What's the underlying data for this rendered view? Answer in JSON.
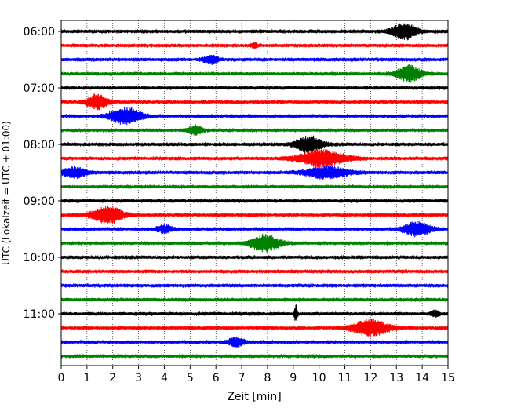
{
  "chart_data": {
    "type": "line",
    "title": "",
    "xlabel": "Zeit  [min]",
    "ylabel": "UTC (Lokalzeit = UTC + 01:00)",
    "xlim": [
      0,
      15
    ],
    "x_ticks": [
      0,
      1,
      2,
      3,
      4,
      5,
      6,
      7,
      8,
      9,
      10,
      11,
      12,
      13,
      14,
      15
    ],
    "y_tick_labels": [
      "06:00",
      "07:00",
      "08:00",
      "09:00",
      "10:00",
      "11:00"
    ],
    "y_tick_rows": [
      0,
      4,
      8,
      12,
      16,
      20
    ],
    "grid": "vertical dotted at each minute",
    "colors": [
      "#000000",
      "#ff0000",
      "#0000ff",
      "#008000"
    ],
    "traces": [
      {
        "label": "06:00",
        "color": "#000000",
        "events": [
          {
            "t": 13.3,
            "amp": 1.0,
            "w": 0.45
          }
        ]
      },
      {
        "label": "06:15",
        "color": "#ff0000",
        "events": [
          {
            "t": 7.5,
            "amp": 0.35,
            "w": 0.1
          }
        ]
      },
      {
        "label": "06:30",
        "color": "#0000ff",
        "events": [
          {
            "t": 5.8,
            "amp": 0.45,
            "w": 0.3
          }
        ]
      },
      {
        "label": "06:45",
        "color": "#008000",
        "events": [
          {
            "t": 13.5,
            "amp": 1.0,
            "w": 0.45
          }
        ]
      },
      {
        "label": "07:00",
        "color": "#000000",
        "events": []
      },
      {
        "label": "07:15",
        "color": "#ff0000",
        "events": [
          {
            "t": 1.4,
            "amp": 0.9,
            "w": 0.4
          }
        ]
      },
      {
        "label": "07:30",
        "color": "#0000ff",
        "events": [
          {
            "t": 2.5,
            "amp": 1.0,
            "w": 0.6
          }
        ]
      },
      {
        "label": "07:45",
        "color": "#008000",
        "events": [
          {
            "t": 5.2,
            "amp": 0.5,
            "w": 0.3
          }
        ]
      },
      {
        "label": "08:00",
        "color": "#000000",
        "events": [
          {
            "t": 9.6,
            "amp": 1.0,
            "w": 0.5
          }
        ]
      },
      {
        "label": "08:15",
        "color": "#ff0000",
        "events": [
          {
            "t": 10.1,
            "amp": 1.0,
            "w": 0.9
          }
        ]
      },
      {
        "label": "08:30",
        "color": "#0000ff",
        "events": [
          {
            "t": 0.5,
            "amp": 0.65,
            "w": 0.45
          },
          {
            "t": 10.3,
            "amp": 0.7,
            "w": 0.8
          }
        ]
      },
      {
        "label": "08:45",
        "color": "#008000",
        "events": []
      },
      {
        "label": "09:00",
        "color": "#000000",
        "events": []
      },
      {
        "label": "09:15",
        "color": "#ff0000",
        "events": [
          {
            "t": 1.8,
            "amp": 1.0,
            "w": 0.6
          }
        ]
      },
      {
        "label": "09:30",
        "color": "#0000ff",
        "events": [
          {
            "t": 4.0,
            "amp": 0.45,
            "w": 0.3
          },
          {
            "t": 13.8,
            "amp": 0.85,
            "w": 0.5
          }
        ]
      },
      {
        "label": "09:45",
        "color": "#008000",
        "events": [
          {
            "t": 7.9,
            "amp": 1.0,
            "w": 0.55
          }
        ]
      },
      {
        "label": "10:00",
        "color": "#000000",
        "events": []
      },
      {
        "label": "10:15",
        "color": "#ff0000",
        "events": []
      },
      {
        "label": "10:30",
        "color": "#0000ff",
        "events": []
      },
      {
        "label": "10:45",
        "color": "#008000",
        "events": []
      },
      {
        "label": "11:00",
        "color": "#000000",
        "events": [
          {
            "t": 9.1,
            "amp": 1.0,
            "w": 0.06
          },
          {
            "t": 14.5,
            "amp": 0.35,
            "w": 0.15
          }
        ]
      },
      {
        "label": "11:15",
        "color": "#ff0000",
        "events": [
          {
            "t": 12.0,
            "amp": 0.95,
            "w": 0.7
          }
        ]
      },
      {
        "label": "11:30",
        "color": "#0000ff",
        "events": [
          {
            "t": 6.8,
            "amp": 0.55,
            "w": 0.3
          }
        ]
      },
      {
        "label": "11:45",
        "color": "#008000",
        "events": []
      }
    ]
  }
}
